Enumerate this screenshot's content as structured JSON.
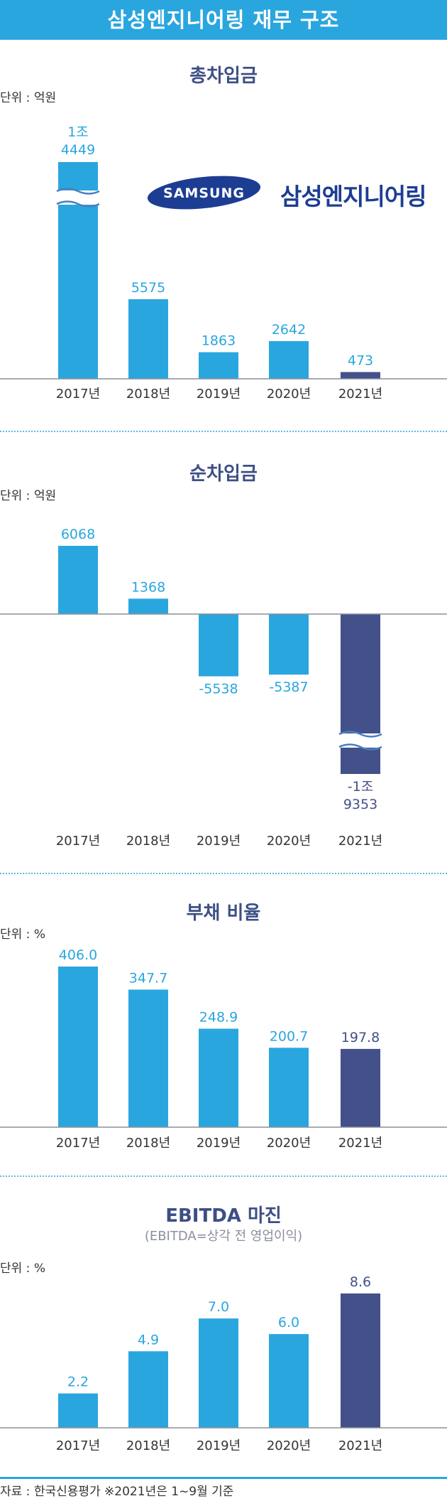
{
  "header": {
    "title": "삼성엔지니어링 재무 구조"
  },
  "logo": {
    "wordmark": "SAMSUNG",
    "company": "삼성엔지니어링"
  },
  "colors": {
    "bar": "#2aa6df",
    "highlight": "#44508a",
    "title": "#3d4f85",
    "banner": "#2aa6df"
  },
  "footer": {
    "source": "자료 : 한국신용평가   ※2021년은 1~9월 기준"
  },
  "chart_data": [
    {
      "type": "bar",
      "title": "총차입금",
      "unit_label": "단위 : 억원",
      "categories": [
        "2017년",
        "2018년",
        "2019년",
        "2020년",
        "2021년"
      ],
      "values": [
        14449,
        5575,
        1863,
        2642,
        473
      ],
      "value_labels": [
        "1조 4449",
        "5575",
        "1863",
        "2642",
        "473"
      ],
      "axis_break": "2017년"
    },
    {
      "type": "bar",
      "title": "순차입금",
      "unit_label": "단위 : 억원",
      "categories": [
        "2017년",
        "2018년",
        "2019년",
        "2020년",
        "2021년"
      ],
      "values": [
        6068,
        1368,
        -5538,
        -5387,
        -19353
      ],
      "value_labels": [
        "6068",
        "1368",
        "-5538",
        "-5387",
        "-1조 9353"
      ],
      "axis_break": "2021년"
    },
    {
      "type": "bar",
      "title": "부채 비율",
      "unit_label": "단위 : %",
      "categories": [
        "2017년",
        "2018년",
        "2019년",
        "2020년",
        "2021년"
      ],
      "values": [
        406.0,
        347.7,
        248.9,
        200.7,
        197.8
      ],
      "value_labels": [
        "406.0",
        "347.7",
        "248.9",
        "200.7",
        "197.8"
      ]
    },
    {
      "type": "bar",
      "title": "EBITDA 마진",
      "subtitle": "(EBITDA=상각 전 영업이익)",
      "unit_label": "단위 : %",
      "categories": [
        "2017년",
        "2018년",
        "2019년",
        "2020년",
        "2021년"
      ],
      "values": [
        2.2,
        4.9,
        7.0,
        6.0,
        8.6
      ],
      "value_labels": [
        "2.2",
        "4.9",
        "7.0",
        "6.0",
        "8.6"
      ]
    }
  ]
}
